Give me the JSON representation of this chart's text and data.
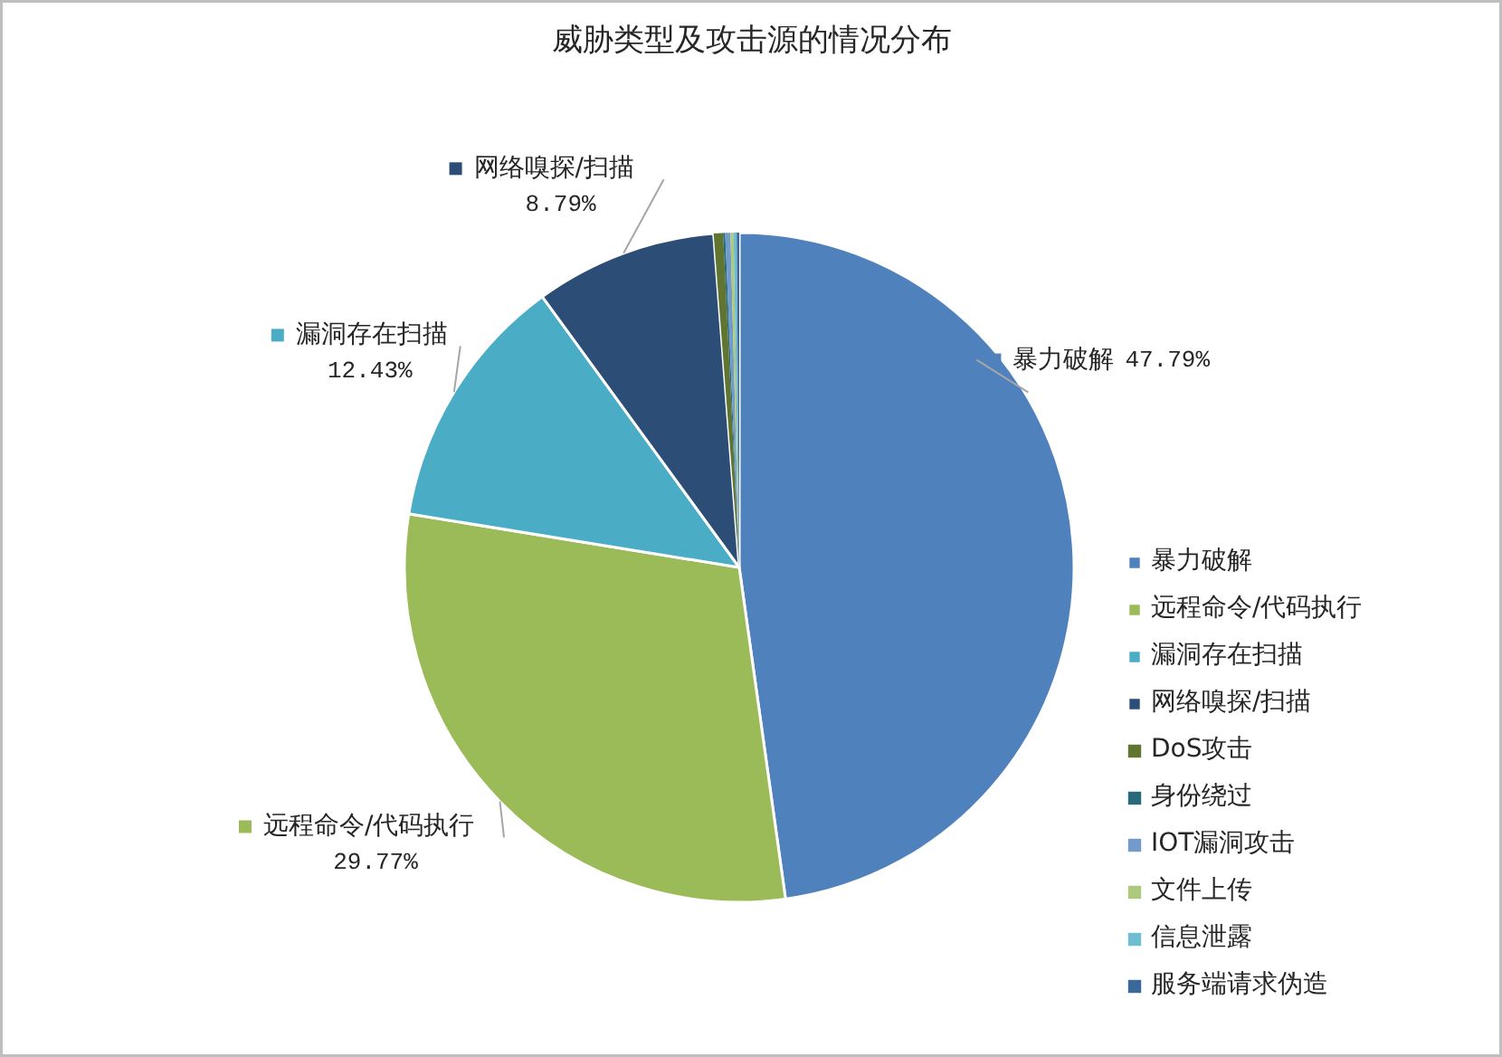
{
  "chart_data": {
    "type": "pie",
    "title": "威胁类型及攻击源的情况分布",
    "categories": [
      "暴力破解",
      "远程命令/代码执行",
      "漏洞存在扫描",
      "网络嗅探/扫描",
      "DoS攻击",
      "身份绕过",
      "IOT漏洞攻击",
      "文件上传",
      "信息泄露",
      "服务端请求伪造"
    ],
    "values": [
      47.79,
      29.77,
      12.43,
      8.79,
      0.45,
      0.1,
      0.25,
      0.15,
      0.15,
      0.12
    ],
    "colors": [
      "#4f81bd",
      "#9bbb59",
      "#4bacc6",
      "#2c4d75",
      "#5f7530",
      "#276a7c",
      "#729aca",
      "#afc97a",
      "#6fbdd1",
      "#3a679c"
    ],
    "value_labels": [
      "47.79%",
      "29.77%",
      "12.43%",
      "8.79%",
      null,
      null,
      null,
      null,
      null,
      null
    ],
    "legend": "right"
  }
}
